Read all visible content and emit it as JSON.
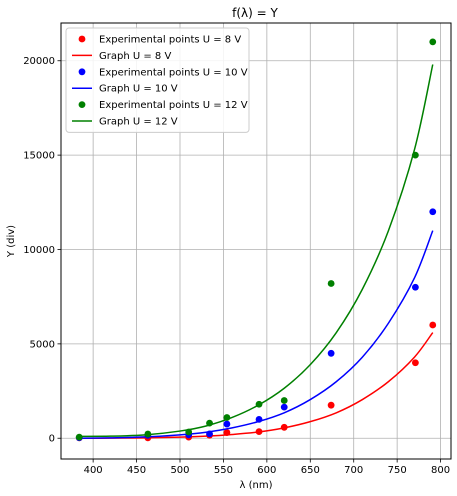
{
  "chart_data": {
    "type": "scatter",
    "title": "f(λ) = Y",
    "xlabel": "λ (nm)",
    "ylabel": "Y (div)",
    "xlim": [
      363,
      812
    ],
    "ylim": [
      -1100,
      22000
    ],
    "xticks": [
      400,
      450,
      500,
      550,
      600,
      650,
      700,
      750,
      800
    ],
    "yticks": [
      0,
      5000,
      10000,
      15000,
      20000
    ],
    "grid": true,
    "legend_position": "top-left",
    "series": [
      {
        "name": "Experimental points U = 8 V",
        "kind": "points",
        "color": "#ff0000",
        "x": [
          384,
          463,
          510,
          534,
          554,
          591,
          620,
          674,
          771,
          791
        ],
        "y": [
          20,
          20,
          60,
          160,
          300,
          350,
          580,
          1750,
          4000,
          6000
        ]
      },
      {
        "name": "Graph U = 8 V",
        "kind": "line",
        "color": "#ff0000",
        "x": [
          384,
          420,
          460,
          500,
          530,
          560,
          590,
          620,
          650,
          680,
          710,
          740,
          770,
          791
        ],
        "y": [
          0,
          5,
          20,
          60,
          110,
          200,
          330,
          550,
          880,
          1350,
          2050,
          3000,
          4300,
          5600
        ]
      },
      {
        "name": "Experimental points U = 10 V",
        "kind": "points",
        "color": "#0000ff",
        "x": [
          384,
          463,
          510,
          534,
          554,
          591,
          620,
          674,
          771,
          791
        ],
        "y": [
          30,
          150,
          180,
          230,
          750,
          1000,
          1650,
          4500,
          8000,
          12000
        ]
      },
      {
        "name": "Graph U = 10 V",
        "kind": "line",
        "color": "#0000ff",
        "x": [
          384,
          420,
          460,
          500,
          530,
          560,
          590,
          620,
          650,
          680,
          710,
          740,
          770,
          791
        ],
        "y": [
          0,
          20,
          70,
          180,
          320,
          550,
          880,
          1350,
          2050,
          3000,
          4300,
          6100,
          8500,
          11000
        ]
      },
      {
        "name": "Experimental points U = 12 V",
        "kind": "points",
        "color": "#008000",
        "x": [
          384,
          463,
          510,
          534,
          554,
          591,
          620,
          674,
          771,
          791
        ],
        "y": [
          60,
          220,
          330,
          800,
          1100,
          1800,
          2000,
          8200,
          15000,
          21000
        ]
      },
      {
        "name": "Graph U = 12 V",
        "kind": "line",
        "color": "#008000",
        "x": [
          384,
          420,
          460,
          500,
          530,
          560,
          590,
          620,
          650,
          680,
          710,
          740,
          770,
          791
        ],
        "y": [
          100,
          110,
          180,
          380,
          650,
          1100,
          1750,
          2650,
          3900,
          5600,
          7900,
          11000,
          15300,
          19800
        ]
      }
    ]
  }
}
